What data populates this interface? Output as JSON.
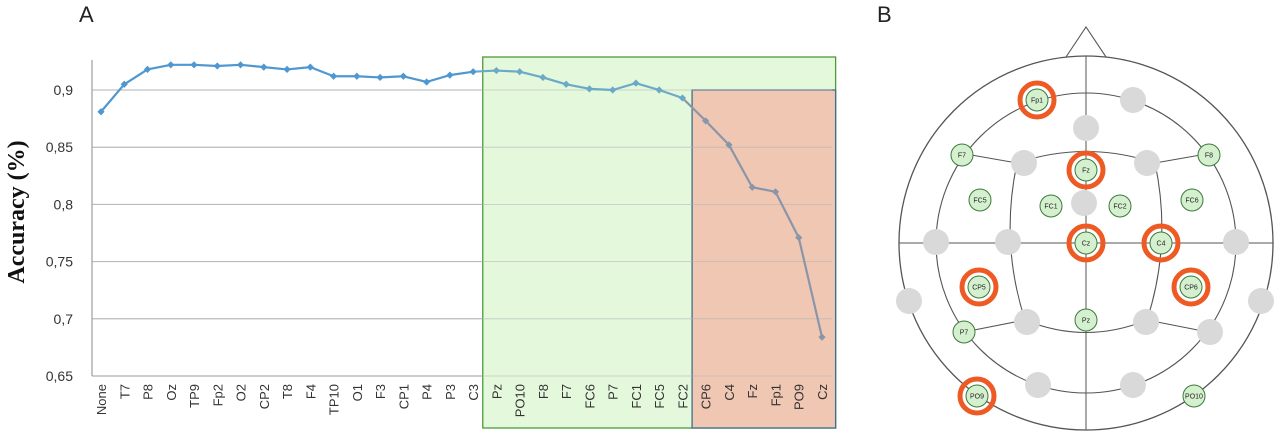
{
  "panels": {
    "a_label": "A",
    "b_label": "B"
  },
  "chart_data": {
    "type": "line",
    "ylabel": "Accuracy (%)",
    "xlabel": "",
    "ylim": [
      0.65,
      0.94
    ],
    "yticks": [
      "0,65",
      "0,7",
      "0,75",
      "0,8",
      "0,85",
      "0,9"
    ],
    "ytick_values": [
      0.65,
      0.7,
      0.75,
      0.8,
      0.85,
      0.9
    ],
    "grid": true,
    "categories": [
      "None",
      "T7",
      "P8",
      "Oz",
      "TP9",
      "Fp2",
      "O2",
      "CP2",
      "T8",
      "F4",
      "TP10",
      "O1",
      "F3",
      "CP1",
      "P4",
      "P3",
      "C3",
      "Pz",
      "PO10",
      "F8",
      "F7",
      "FC6",
      "P7",
      "FC1",
      "FC5",
      "FC2",
      "CP6",
      "C4",
      "Fz",
      "Fp1",
      "PO9",
      "Cz"
    ],
    "series": [
      {
        "values": [
          0.881,
          0.905,
          0.918,
          0.922,
          0.922,
          0.921,
          0.922,
          0.92,
          0.918,
          0.92,
          0.912,
          0.912,
          0.911,
          0.912,
          0.907,
          0.913,
          0.916,
          0.917,
          0.916,
          0.911,
          0.905,
          0.901,
          0.9,
          0.906,
          0.9,
          0.893,
          0.873,
          0.852,
          0.815,
          0.811,
          0.771,
          0.684
        ]
      }
    ],
    "highlight_regions": [
      {
        "from": "Pz",
        "to": "Cz",
        "color": "#e4f8dc",
        "border": "#4e9a3a"
      },
      {
        "from": "CP6",
        "to": "Cz",
        "color": "#efc7b3",
        "border": "#3f6f8c"
      }
    ]
  },
  "head_map": {
    "electrodes_green": [
      "Fp1",
      "Fz",
      "F7",
      "F8",
      "FC5",
      "FC1",
      "FC2",
      "FC6",
      "Cz",
      "C4",
      "CP5",
      "CP6",
      "P7",
      "Pz",
      "PO9",
      "PO10"
    ],
    "electrodes_selected": [
      "Fp1",
      "Fz",
      "Cz",
      "C4",
      "CP5",
      "CP6",
      "PO9"
    ],
    "colors": {
      "green_fill": "#d5f0cf",
      "selected_ring": "#ee5a24",
      "grey_fill": "#d9d9d9",
      "outline": "#555555"
    }
  }
}
